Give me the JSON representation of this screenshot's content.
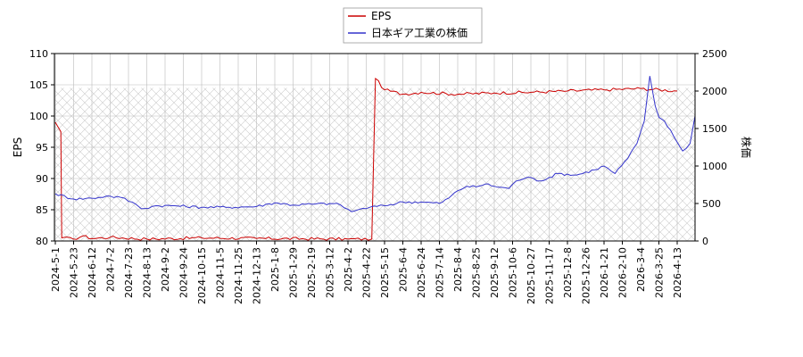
{
  "chart_data": {
    "type": "line",
    "legend": {
      "placement": "top-center",
      "entries": [
        {
          "name": "EPS",
          "color": "#cc0000"
        },
        {
          "name": "日本ギア工業の株価",
          "color": "#3333cc"
        }
      ]
    },
    "grid": true,
    "hatched_background": true,
    "left_axis": {
      "label": "EPS",
      "range": [
        80,
        110
      ],
      "ticks": [
        "80",
        "85",
        "90",
        "95",
        "100",
        "105",
        "110"
      ]
    },
    "right_axis": {
      "label": "株価",
      "range": [
        0,
        2500
      ],
      "ticks": [
        "0",
        "500",
        "1000",
        "1500",
        "2000",
        "2500"
      ]
    },
    "x_ticks": [
      "2024-5-1",
      "2024-5-23",
      "2024-6-12",
      "2024-7-2",
      "2024-7-23",
      "2024-8-13",
      "2024-9-2",
      "2024-9-24",
      "2024-10-15",
      "2024-11-5",
      "2024-11-25",
      "2024-12-13",
      "2025-1-8",
      "2025-1-29",
      "2025-2-19",
      "2025-3-12",
      "2025-4-2",
      "2025-4-22",
      "2025-5-15",
      "2025-6-4",
      "2025-6-24",
      "2025-7-14",
      "2025-8-4",
      "2025-8-25",
      "2025-9-12",
      "2025-10-6",
      "2025-10-27",
      "2025-11-17",
      "2025-12-8",
      "2025-12-26",
      "2026-1-21",
      "2026-2-10",
      "2026-3-4",
      "2026-3-25",
      "2026-4-13"
    ],
    "series": [
      {
        "name": "EPS",
        "axis": "left",
        "color": "#cc0000",
        "x_index": [
          0,
          0.1,
          0.3,
          0.35,
          1,
          1.5,
          2,
          3,
          5,
          8,
          11,
          16,
          17.3,
          17.4,
          17.5,
          18,
          19,
          20,
          22,
          24,
          26,
          28,
          30,
          32,
          34
        ],
        "values": [
          99,
          98.5,
          97.5,
          80.5,
          80.3,
          80.8,
          80.4,
          80.6,
          80.3,
          80.5,
          80.4,
          80.3,
          80.3,
          93,
          106,
          104.2,
          103.5,
          103.8,
          103.5,
          103.7,
          103.8,
          104,
          104.2,
          104.4,
          104
        ]
      },
      {
        "name": "日本ギア工業の株価",
        "axis": "right",
        "color": "#3333cc",
        "x_index": [
          0,
          1,
          2,
          2.8,
          3.6,
          4.4,
          4.7,
          5.5,
          6.5,
          8,
          9.5,
          11,
          12,
          13,
          14,
          15,
          15.6,
          16.2,
          16.6,
          17.2,
          18,
          19,
          20,
          21,
          21.5,
          22,
          22.5,
          23,
          23.5,
          24,
          24.8,
          25.2,
          25.8,
          26.5,
          27.5,
          28.5,
          29.5,
          30,
          30.6,
          31.3,
          31.8,
          32.2,
          32.5,
          32.8,
          33,
          33.3,
          33.8,
          34.3,
          34.7,
          35
        ],
        "values": [
          630,
          560,
          570,
          600,
          580,
          490,
          430,
          470,
          470,
          450,
          450,
          460,
          510,
          480,
          490,
          500,
          480,
          390,
          420,
          450,
          470,
          520,
          520,
          500,
          570,
          670,
          730,
          720,
          760,
          730,
          700,
          800,
          850,
          800,
          900,
          880,
          950,
          1000,
          900,
          1100,
          1300,
          1600,
          2200,
          1800,
          1650,
          1600,
          1400,
          1200,
          1300,
          1700
        ]
      }
    ]
  }
}
